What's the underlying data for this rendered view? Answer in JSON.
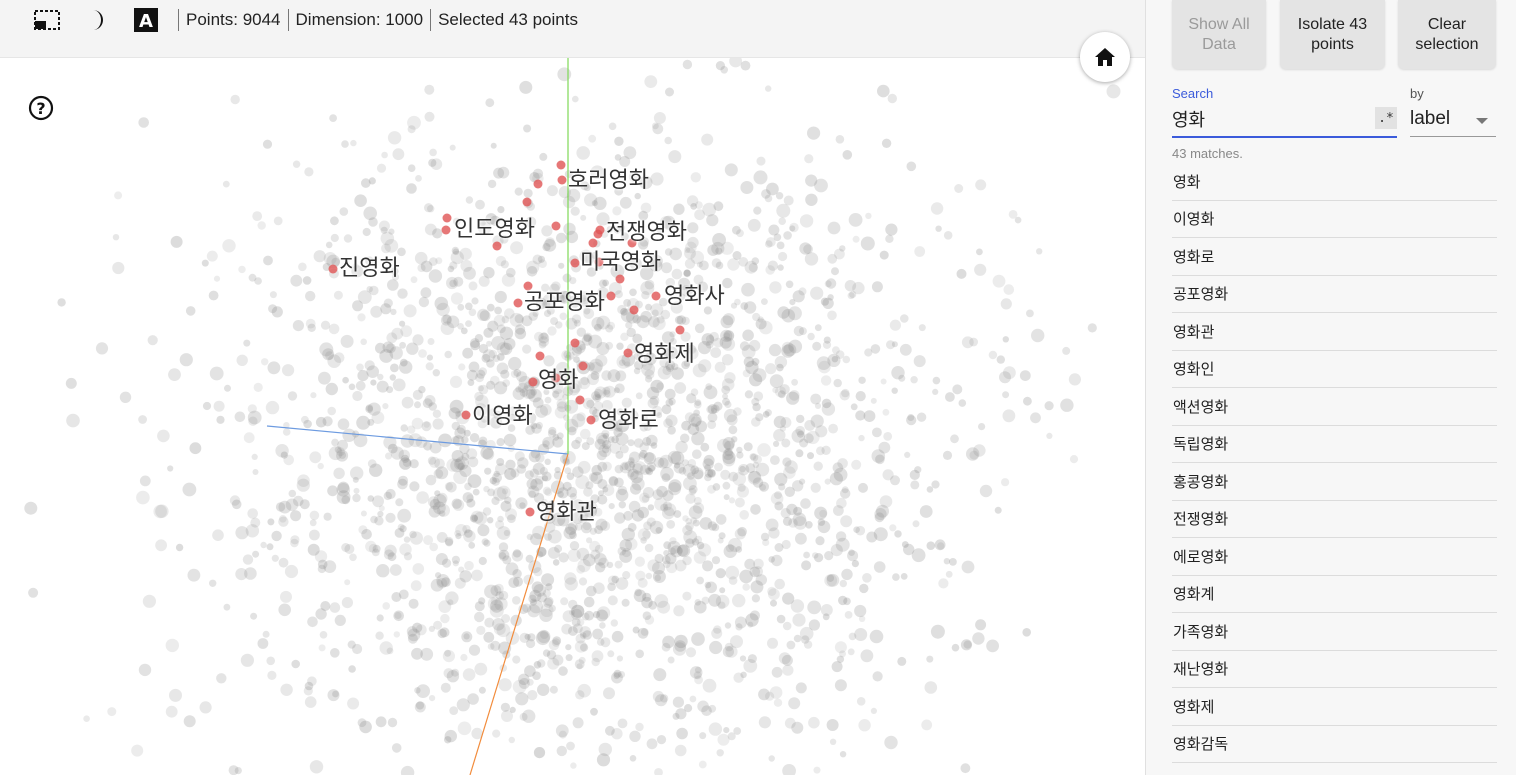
{
  "toolbar": {
    "tools": [
      {
        "name": "selection-box-icon"
      },
      {
        "name": "night-mode-icon"
      },
      {
        "name": "label-toggle-icon",
        "glyph": "A"
      }
    ],
    "stats": {
      "points": "Points: 9044",
      "dimension": "Dimension: 1000",
      "selected": "Selected 43 points"
    }
  },
  "viewer": {
    "home_icon": "home-icon",
    "help_icon": "help-icon",
    "background_point_count": 2200,
    "point_color": "#8c8c8c",
    "selected_color": "#e05555",
    "axis_colors": {
      "x": "#6d9be0",
      "y": "#7ed957",
      "z": "#f28c3c"
    },
    "labels": [
      {
        "text": "호러영화"
      },
      {
        "text": "인도영화"
      },
      {
        "text": "전쟁영화"
      },
      {
        "text": "진영화"
      },
      {
        "text": "미국영화"
      },
      {
        "text": "공포영화"
      },
      {
        "text": "영화사"
      },
      {
        "text": "영화제"
      },
      {
        "text": "영화"
      },
      {
        "text": "이영화"
      },
      {
        "text": "영화로"
      },
      {
        "text": "영화관"
      }
    ]
  },
  "panel": {
    "buttons": {
      "show_all": "Show All Data",
      "isolate": "Isolate 43 points",
      "clear": "Clear selection"
    },
    "search": {
      "label": "Search",
      "value": "영화",
      "regex_glyph": ".*"
    },
    "by": {
      "label": "by",
      "value": "label"
    },
    "matches": "43 matches.",
    "results": [
      "영화",
      "이영화",
      "영화로",
      "공포영화",
      "영화관",
      "영화인",
      "액션영화",
      "독립영화",
      "홍콩영화",
      "전쟁영화",
      "에로영화",
      "영화계",
      "가족영화",
      "재난영화",
      "영화제",
      "영화감독"
    ]
  }
}
